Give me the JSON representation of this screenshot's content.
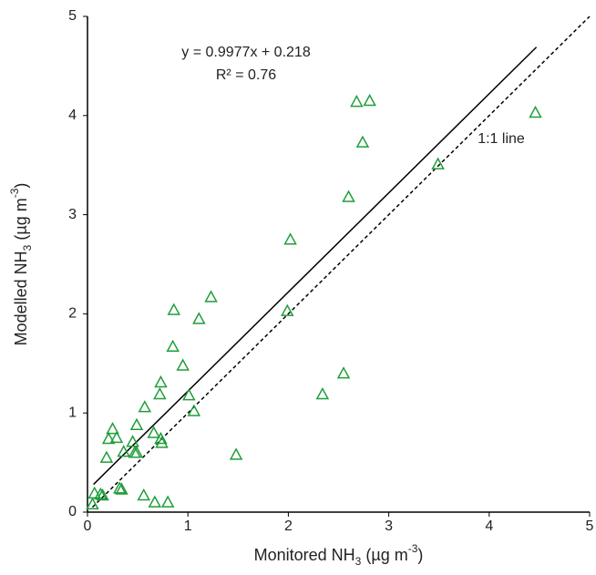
{
  "chart_data": {
    "type": "scatter",
    "x_label": [
      "Monitored NH",
      "3",
      " (µg m",
      "-3",
      ")"
    ],
    "y_label": [
      "Modelled NH",
      "3",
      " (µg m",
      "-3",
      ")"
    ],
    "annotations": [
      "y = 0.9977x + 0.218",
      "R² = 0.76"
    ],
    "xlim": [
      0,
      5
    ],
    "ylim": [
      0,
      5
    ],
    "xticks": [
      0,
      1,
      2,
      3,
      4,
      5
    ],
    "yticks": [
      0,
      1,
      2,
      3,
      4,
      5
    ],
    "series": [
      {
        "color": "#1f9e3a",
        "x": [
          4.46,
          2.81,
          2.68,
          2.74,
          3.49,
          2.6,
          2.02,
          1.23,
          0.86,
          1.11,
          1.99,
          0.85,
          0.95,
          0.73,
          0.72,
          1.01,
          0.57,
          1.06,
          2.55,
          2.34,
          0.25,
          0.49,
          0.29,
          0.21,
          0.66,
          0.45,
          0.73,
          0.74,
          0.36,
          0.47,
          0.49,
          0.19,
          1.48,
          0.32,
          0.34,
          0.56,
          0.67,
          0.8,
          0.07,
          0.13,
          0.15,
          0.05
        ],
        "values": [
          4.03,
          4.15,
          4.14,
          3.73,
          3.51,
          3.18,
          2.75,
          2.17,
          2.04,
          1.95,
          2.03,
          1.67,
          1.48,
          1.31,
          1.19,
          1.18,
          1.06,
          1.02,
          1.4,
          1.19,
          0.84,
          0.88,
          0.75,
          0.74,
          0.8,
          0.71,
          0.74,
          0.7,
          0.61,
          0.6,
          0.6,
          0.55,
          0.58,
          0.24,
          0.23,
          0.17,
          0.1,
          0.1,
          0.19,
          0.18,
          0.17,
          0.08
        ]
      }
    ],
    "lines": [
      {
        "x": [
          0.06,
          4.47
        ],
        "values": [
          0.28,
          4.69
        ],
        "color": "#000000",
        "dashed": false
      },
      {
        "x": [
          0.05,
          5
        ],
        "values": [
          0.05,
          5
        ],
        "color": "#000000",
        "dashed": true,
        "label": "1:1 line"
      }
    ]
  }
}
